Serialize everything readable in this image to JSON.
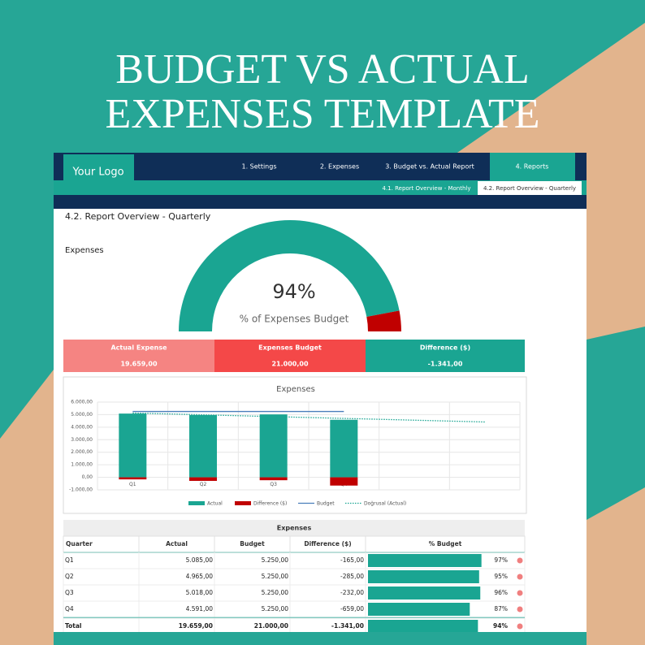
{
  "header": {
    "title_lines": [
      "BUDGET VS ACTUAL",
      "EXPENSES TEMPLATE"
    ]
  },
  "nav": {
    "logo": "Your Logo",
    "tabs": [
      "1. Settings",
      "2. Expenses",
      "3. Budget vs. Actual Report",
      "4. Reports"
    ],
    "active_tab": 3,
    "subtabs": [
      "4.1. Report Overview - Monthly",
      "4.2. Report Overview - Quarterly"
    ],
    "active_subtab": 1
  },
  "page_title": "4.2. Report Overview - Quarterly",
  "gauge": {
    "label": "Expenses",
    "value": 94,
    "value_label": "94%",
    "caption": "% of Expenses Budget"
  },
  "kpis": [
    {
      "label": "Actual Expense",
      "value": "19.659,00",
      "color": "#f58482"
    },
    {
      "label": "Expenses Budget",
      "value": "21.000,00",
      "color": "#f44848"
    },
    {
      "label": "Difference ($)",
      "value": "-1.341,00",
      "color": "#1aa592"
    }
  ],
  "chart_data": {
    "type": "combo",
    "title": "Expenses",
    "categories": [
      "Q1",
      "Q2",
      "Q3",
      "Q4",
      null,
      null
    ],
    "series": [
      {
        "name": "Actual",
        "type": "bar",
        "color": "#1aa592",
        "values": [
          5085,
          4965,
          5018,
          4591,
          null,
          null
        ]
      },
      {
        "name": "Difference ($)",
        "type": "bar",
        "color": "#c00000",
        "values": [
          -165,
          -285,
          -232,
          -659,
          null,
          null
        ]
      },
      {
        "name": "Budget",
        "type": "line",
        "color": "#4a7ebb",
        "values": [
          5250,
          5250,
          5250,
          5250,
          null,
          null
        ]
      },
      {
        "name": "Doğrusal (Actual)",
        "type": "line",
        "style": "dotted",
        "color": "#1aa592",
        "values": [
          5129,
          4986,
          4843,
          4700,
          4558,
          4415
        ]
      }
    ],
    "ylim": [
      -1000,
      6000
    ],
    "yticks": [
      {
        "value": -1000,
        "label": "-1.000,00"
      },
      {
        "value": 0,
        "label": "0,00"
      },
      {
        "value": 1000,
        "label": "1.000,00"
      },
      {
        "value": 2000,
        "label": "2.000,00"
      },
      {
        "value": 3000,
        "label": "3.000,00"
      },
      {
        "value": 4000,
        "label": "4.000,00"
      },
      {
        "value": 5000,
        "label": "5.000,00"
      },
      {
        "value": 6000,
        "label": "6.000,00"
      }
    ],
    "grid": true,
    "legend": "bottom"
  },
  "table": {
    "title": "Expenses",
    "columns": [
      "Quarter",
      "Actual",
      "Budget",
      "Difference ($)",
      "% Budget"
    ],
    "rows": [
      {
        "cells": [
          "Q1",
          "5.085,00",
          "5.250,00",
          "-165,00"
        ],
        "pct": 97,
        "pct_label": "97%"
      },
      {
        "cells": [
          "Q2",
          "4.965,00",
          "5.250,00",
          "-285,00"
        ],
        "pct": 95,
        "pct_label": "95%"
      },
      {
        "cells": [
          "Q3",
          "5.018,00",
          "5.250,00",
          "-232,00"
        ],
        "pct": 96,
        "pct_label": "96%"
      },
      {
        "cells": [
          "Q4",
          "4.591,00",
          "5.250,00",
          "-659,00"
        ],
        "pct": 87,
        "pct_label": "87%"
      },
      {
        "cells": [
          "Total",
          "19.659,00",
          "21.000,00",
          "-1.341,00"
        ],
        "pct": 94,
        "pct_label": "94%"
      }
    ]
  }
}
